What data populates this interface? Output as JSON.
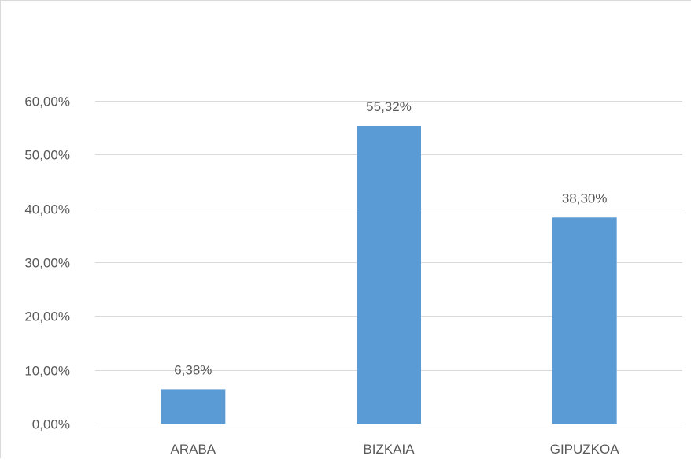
{
  "chart_data": {
    "type": "bar",
    "categories": [
      "ARABA",
      "BIZKAIA",
      "GIPUZKOA"
    ],
    "values": [
      6.38,
      55.32,
      38.3
    ],
    "value_labels": [
      "6,38%",
      "55,32%",
      "38,30%"
    ],
    "y_ticks": [
      0,
      10,
      20,
      30,
      40,
      50,
      60
    ],
    "y_tick_labels": [
      "0,00%",
      "10,00%",
      "20,00%",
      "30,00%",
      "40,00%",
      "50,00%",
      "60,00%"
    ],
    "ylim": [
      0,
      60
    ],
    "grid": true,
    "legend": "none",
    "bar_color": "#5b9bd5",
    "grid_color": "#d9d9d9",
    "text_color": "#595959"
  }
}
